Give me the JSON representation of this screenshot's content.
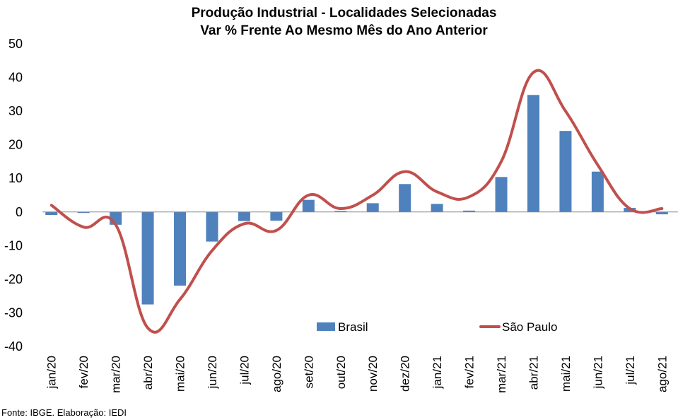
{
  "chart_data": {
    "type": "bar",
    "title_line1": "Produção Industrial - Localidades Selecionadas",
    "title_line2": "Var % Frente Ao Mesmo Mês do Ano Anterior",
    "categories": [
      "jan/20",
      "fev/20",
      "mar/20",
      "abr/20",
      "mai/20",
      "jun/20",
      "jul/20",
      "ago/20",
      "set/20",
      "out/20",
      "nov/20",
      "dez/20",
      "jan/21",
      "fev/21",
      "mar/21",
      "abr/21",
      "mai/21",
      "jun/21",
      "jul/21",
      "ago/21"
    ],
    "series": [
      {
        "name": "Brasil",
        "type": "bar",
        "color": "#4f81bd",
        "values": [
          -0.9,
          -0.3,
          -3.8,
          -27.5,
          -21.9,
          -8.8,
          -2.7,
          -2.6,
          3.6,
          0.3,
          2.6,
          8.3,
          2.4,
          0.4,
          10.4,
          34.8,
          24.1,
          12.0,
          1.2,
          -0.7
        ]
      },
      {
        "name": "São Paulo",
        "type": "line",
        "color": "#c0504d",
        "values": [
          2.0,
          -4.5,
          -3.8,
          -34.5,
          -26.0,
          -11.5,
          -3.5,
          -5.5,
          5.0,
          1.0,
          5.0,
          12.0,
          6.0,
          4.5,
          15.0,
          41.5,
          30.0,
          14.0,
          1.0,
          1.0
        ]
      }
    ],
    "yticks": [
      50,
      40,
      30,
      20,
      10,
      0,
      -10,
      -20,
      -30,
      -40
    ],
    "ylim": [
      -40,
      50
    ],
    "legend_position": "inside-bottom-right",
    "grid": false
  },
  "source": "Fonte: IBGE. Elaboração: IEDI"
}
